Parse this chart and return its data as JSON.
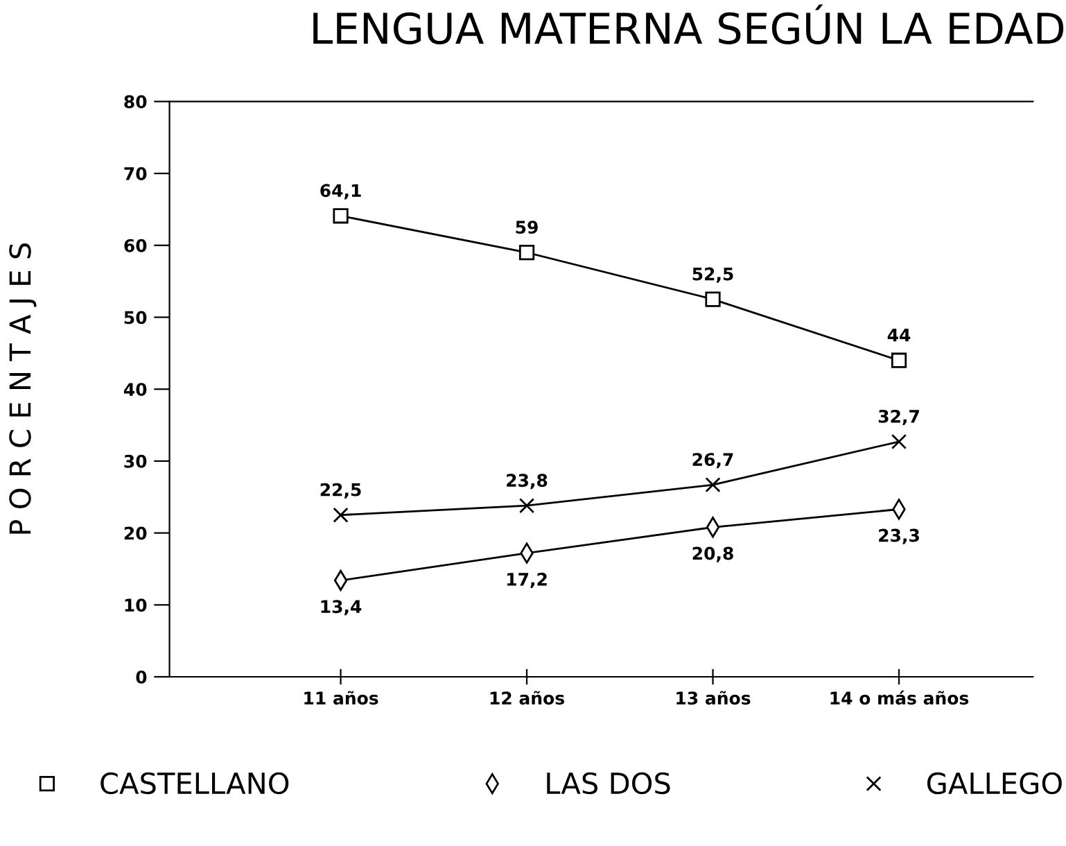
{
  "chart_data": {
    "type": "line",
    "title": "LENGUA MATERNA SEGÚN LA EDAD",
    "ylabel": "P O R C E N T A J E S",
    "categories": [
      "11 años",
      "12 años",
      "13 años",
      "14 o más años"
    ],
    "series": [
      {
        "name": "CASTELLANO",
        "color": "#000000",
        "marker": "square",
        "values": [
          64.1,
          59,
          52.5,
          44
        ],
        "value_labels": [
          "64,1",
          "59",
          "52,5",
          "44"
        ]
      },
      {
        "name": "LAS DOS",
        "color": "#000000",
        "marker": "diamond",
        "values": [
          13.4,
          17.2,
          20.8,
          23.3
        ],
        "value_labels": [
          "13,4",
          "17,2",
          "20,8",
          "23,3"
        ]
      },
      {
        "name": "GALLEGO",
        "color": "#000000",
        "marker": "cross",
        "values": [
          22.5,
          23.8,
          26.7,
          32.7
        ],
        "value_labels": [
          "22,5",
          "23,8",
          "26,7",
          "32,7"
        ]
      }
    ],
    "ylim": [
      0,
      80
    ],
    "yticks": [
      0,
      10,
      20,
      30,
      40,
      50,
      60,
      70,
      80
    ],
    "grid": false,
    "legend": "bottom",
    "line_style": "solid"
  }
}
